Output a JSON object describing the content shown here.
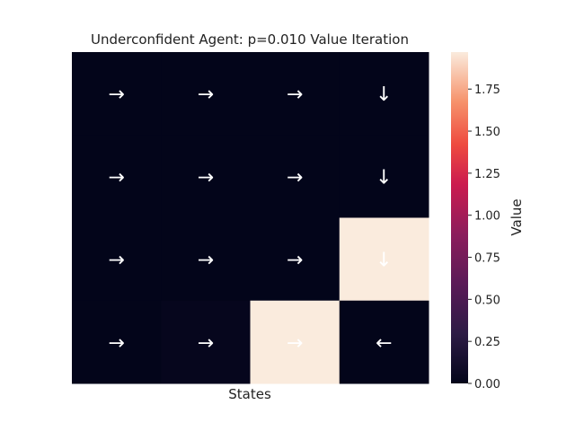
{
  "chart_data": {
    "type": "heatmap",
    "title": "Underconfident Agent: p=0.010 Value Iteration",
    "xlabel": "States",
    "colorbar_label": "Value",
    "rows": 4,
    "cols": 4,
    "values": [
      [
        0.0,
        0.0,
        0.0,
        0.0
      ],
      [
        0.0,
        0.0,
        0.0,
        0.0
      ],
      [
        0.0,
        0.0,
        0.0,
        1.97
      ],
      [
        0.0,
        0.02,
        1.97,
        0.0
      ]
    ],
    "arrows": [
      [
        "→",
        "→",
        "→",
        "↓"
      ],
      [
        "→",
        "→",
        "→",
        "↓"
      ],
      [
        "→",
        "→",
        "→",
        "↓"
      ],
      [
        "→",
        "→",
        "→",
        "←"
      ]
    ],
    "vmin": 0.0,
    "vmax": 1.97,
    "colorbar_ticks": [
      "0.00",
      "0.25",
      "0.50",
      "0.75",
      "1.00",
      "1.25",
      "1.50",
      "1.75"
    ],
    "colormap": "rocket",
    "arrow_color": "#ffffff"
  }
}
